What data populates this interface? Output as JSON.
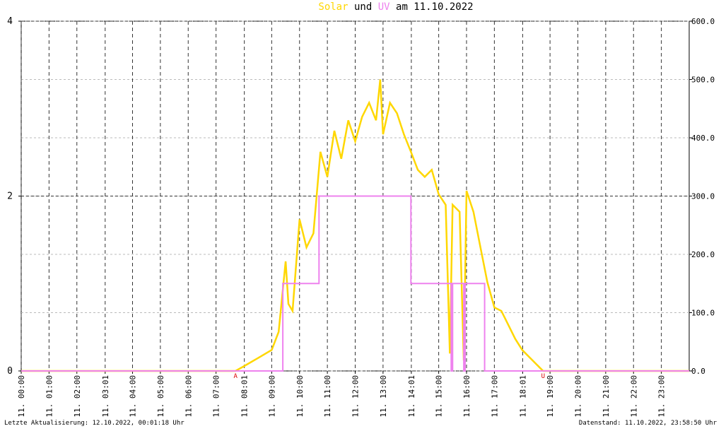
{
  "chart_data": {
    "type": "line",
    "title_joiner": "und",
    "title_suffix": "am 11.10.2022",
    "xlim": [
      0,
      24
    ],
    "ylim": [
      0,
      4
    ],
    "yticks": [
      0,
      2,
      4
    ],
    "y2lim": [
      0,
      600
    ],
    "y2ticks": [
      {
        "value": 0,
        "label": "0.0"
      },
      {
        "value": 100,
        "label": "100.0"
      },
      {
        "value": 200,
        "label": "200.0"
      },
      {
        "value": 300,
        "label": "300.0"
      },
      {
        "value": 400,
        "label": "400.0"
      },
      {
        "value": 500,
        "label": "500.0"
      },
      {
        "value": 600,
        "label": "600.0"
      }
    ],
    "xticks": [
      {
        "value": 0,
        "label": "11. 00:00"
      },
      {
        "value": 1,
        "label": "11. 01:00"
      },
      {
        "value": 2,
        "label": "11. 02:00"
      },
      {
        "value": 3.0167,
        "label": "11. 03:01"
      },
      {
        "value": 4,
        "label": "11. 04:00"
      },
      {
        "value": 5,
        "label": "11. 05:00"
      },
      {
        "value": 6,
        "label": "11. 06:00"
      },
      {
        "value": 7,
        "label": "11. 07:00"
      },
      {
        "value": 8.0167,
        "label": "11. 08:01"
      },
      {
        "value": 9,
        "label": "11. 09:00"
      },
      {
        "value": 10,
        "label": "11. 10:00"
      },
      {
        "value": 11,
        "label": "11. 11:00"
      },
      {
        "value": 12,
        "label": "11. 12:00"
      },
      {
        "value": 13,
        "label": "11. 13:00"
      },
      {
        "value": 14.0167,
        "label": "11. 14:01"
      },
      {
        "value": 15,
        "label": "11. 15:00"
      },
      {
        "value": 16,
        "label": "11. 16:00"
      },
      {
        "value": 17,
        "label": "11. 17:00"
      },
      {
        "value": 18.0167,
        "label": "11. 18:01"
      },
      {
        "value": 19,
        "label": "11. 19:00"
      },
      {
        "value": 20,
        "label": "11. 20:00"
      },
      {
        "value": 21,
        "label": "11. 21:00"
      },
      {
        "value": 22,
        "label": "11. 22:00"
      },
      {
        "value": 23,
        "label": "11. 23:00"
      }
    ],
    "grid": true,
    "series": [
      {
        "name": "Solar",
        "color": "#ffd700",
        "axis": "y2",
        "x": [
          0,
          7.7,
          8.0,
          8.5,
          9.0,
          9.25,
          9.5,
          9.6,
          9.75,
          10.0,
          10.25,
          10.5,
          10.75,
          11.0,
          11.25,
          11.5,
          11.75,
          12.0,
          12.25,
          12.5,
          12.75,
          12.9,
          13.0,
          13.25,
          13.5,
          13.75,
          14.0,
          14.25,
          14.5,
          14.75,
          15.0,
          15.25,
          15.4,
          15.5,
          15.75,
          15.9,
          16.0,
          16.25,
          16.5,
          16.75,
          17.0,
          17.25,
          17.5,
          17.75,
          18.0,
          18.25,
          18.5,
          18.75,
          24
        ],
        "values": [
          0,
          0,
          8,
          22,
          36,
          67,
          188,
          115,
          103,
          260,
          212,
          236,
          376,
          333,
          412,
          364,
          430,
          394,
          436,
          460,
          430,
          500,
          406,
          460,
          442,
          406,
          376,
          345,
          333,
          345,
          303,
          285,
          30,
          285,
          273,
          18,
          309,
          273,
          212,
          152,
          109,
          103,
          79,
          55,
          36,
          24,
          12,
          0,
          0
        ]
      },
      {
        "name": "UV",
        "color": "#ee82ee",
        "axis": "y",
        "x": [
          0,
          9.4,
          9.4,
          9.9,
          9.9,
          10.7,
          10.7,
          14.0,
          14.0,
          15.45,
          15.45,
          15.5,
          15.5,
          15.9,
          15.9,
          15.95,
          15.95,
          16.65,
          16.65,
          24
        ],
        "values": [
          0,
          0,
          1,
          1,
          1,
          1,
          2,
          2,
          1,
          1,
          0,
          0,
          1,
          1,
          0,
          0,
          1,
          1,
          0,
          0
        ]
      }
    ],
    "annotations": [
      {
        "text": "A",
        "x": 7.7
      },
      {
        "text": "U",
        "x": 18.75
      }
    ],
    "footer_left": "Letzte Aktualisierung: 12.10.2022, 00:01:18 Uhr",
    "footer_right": "Datenstand: 11.10.2022, 23:58:50 Uhr"
  }
}
